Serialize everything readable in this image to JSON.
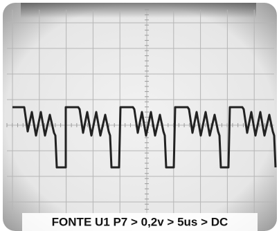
{
  "caption": "FONTE U1 P7 > 0,2v > 5us > DC"
}
